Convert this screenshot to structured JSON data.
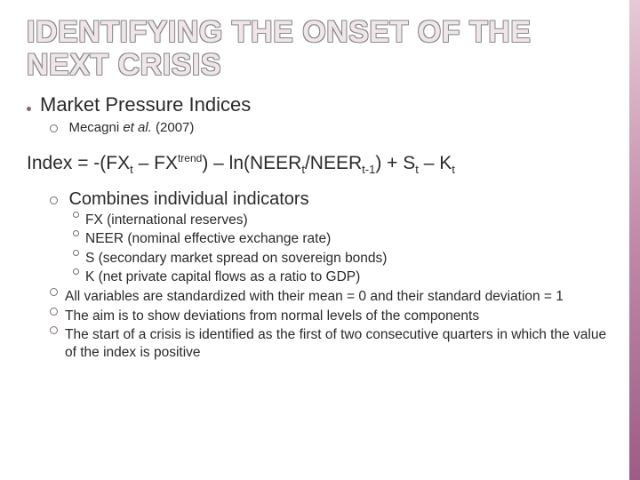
{
  "title": "IDENTIFYING THE ONSET OF THE NEXT CRISIS",
  "heading": "Market Pressure Indices",
  "citation_author": "Mecagni",
  "citation_rest_italic": "et al.",
  "citation_year": "(2007)",
  "formula_prefix": "Index = -(FX",
  "formula_t1": "t",
  "formula_mid1": " – FX",
  "formula_sup": "trend",
  "formula_mid2": ") – ln(NEER",
  "formula_t2": "t",
  "formula_slash": "/NEER",
  "formula_t3": "t-1",
  "formula_mid3": ") + S",
  "formula_t4": "t",
  "formula_mid4": " – K",
  "formula_t5": "t",
  "subheading": "Combines individual indicators",
  "defs": [
    "FX (international reserves)",
    "NEER (nominal effective exchange rate)",
    "S (secondary market spread on sovereign bonds)",
    "K (net private capital flows as a ratio to GDP)"
  ],
  "notes": [
    "All variables are standardized with their mean = 0 and their standard deviation = 1",
    "The aim is to show deviations from normal levels of the components",
    "The start of a crisis is identified as the first of two consecutive quarters in which the value of the index is positive"
  ],
  "colors": {
    "title_outline": "#8a8a8a",
    "title_fill": "#f0e6ea",
    "text": "#2a2a2a",
    "bullet": "#8a6078",
    "ring": "#7a6a74",
    "bar_top": "#e8c9d6",
    "bar_bottom": "#9d5c86",
    "background": "#ffffff"
  }
}
